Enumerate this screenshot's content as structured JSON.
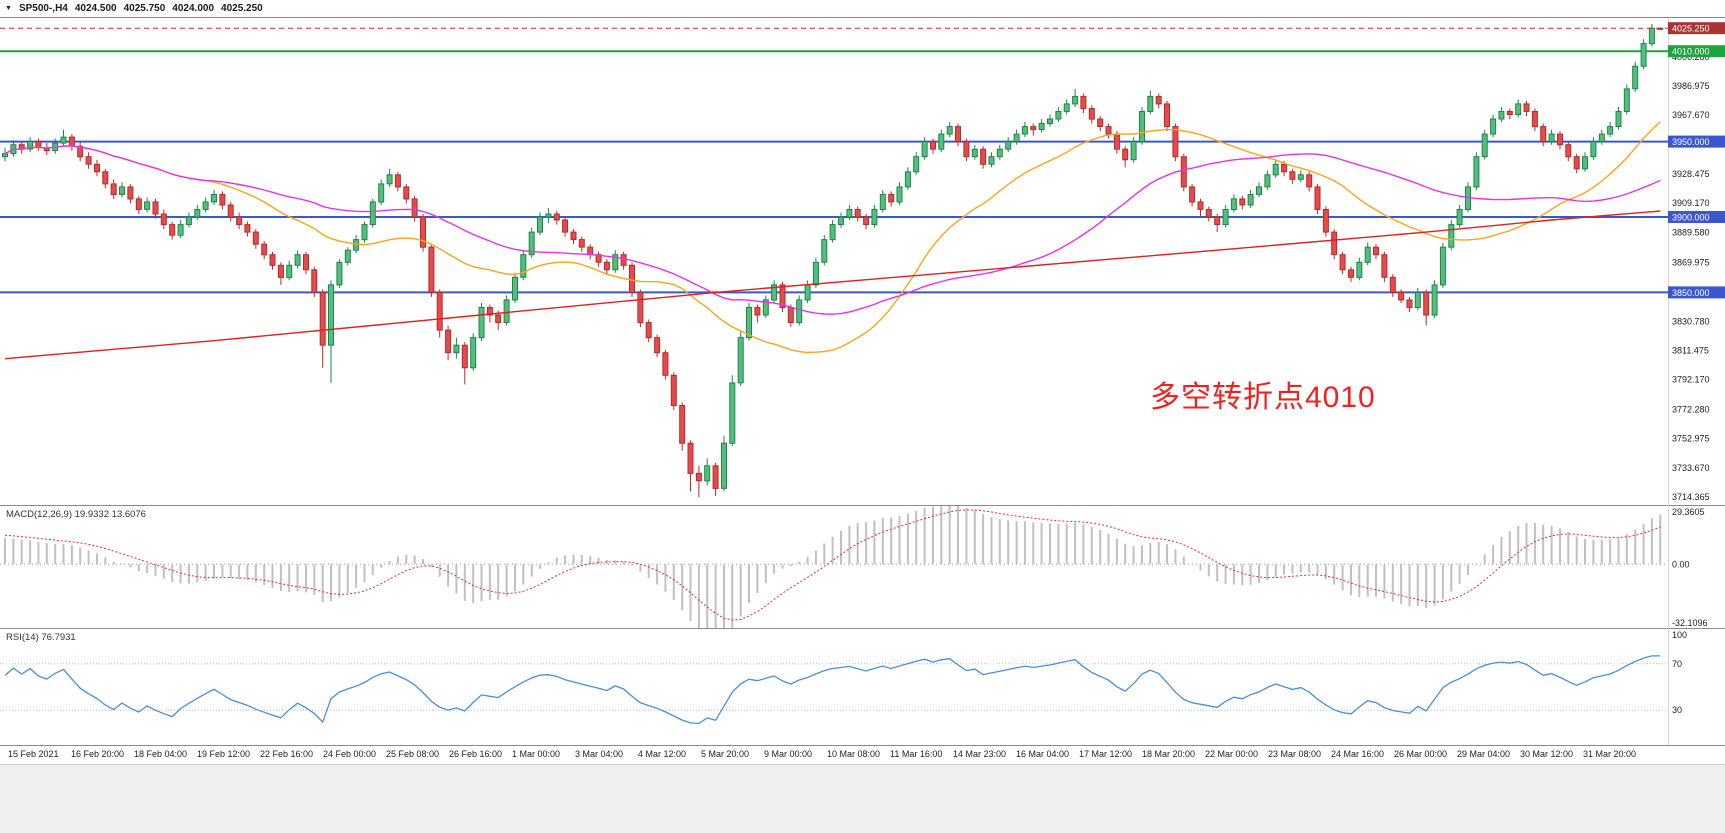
{
  "quote_bar": {
    "symbol_period": "SP500-,H4",
    "open": "4024.500",
    "high": "4025.750",
    "low": "4024.000",
    "close": "4025.250"
  },
  "annotation": {
    "text": "多空转折点4010",
    "color": "#f41f1f"
  },
  "panes": {
    "macd": {
      "header": "MACD(12,26,9) 19.9332 13.6076",
      "scale_labels": {
        "top": "29.3605",
        "zero": "0.00",
        "bottom": "-32.1096"
      }
    },
    "rsi": {
      "header": "RSI(14) 76.7931",
      "scale_labels": [
        {
          "label": "100",
          "value": 100
        },
        {
          "label": "70",
          "value": 70
        },
        {
          "label": "30",
          "value": 30
        }
      ]
    }
  },
  "price_axis": {
    "current": {
      "label": "4025.250",
      "value": 4025.25
    },
    "line_badges": [
      {
        "label": "4010.000",
        "value": 4010,
        "color": "#1FA33C"
      },
      {
        "label": "3950.000",
        "value": 3950,
        "color": "#3A57D0"
      },
      {
        "label": "3900.000",
        "value": 3900,
        "color": "#3A57D0"
      },
      {
        "label": "3850.000",
        "value": 3850,
        "color": "#3A57D0"
      }
    ],
    "ticks": [
      {
        "label": "4006.280",
        "value": 4006.28
      },
      {
        "label": "3986.975",
        "value": 3986.975
      },
      {
        "label": "3967.670",
        "value": 3967.67
      },
      {
        "label": "3928.475",
        "value": 3928.475
      },
      {
        "label": "3909.170",
        "value": 3909.17
      },
      {
        "label": "3889.580",
        "value": 3889.58
      },
      {
        "label": "3869.975",
        "value": 3869.975
      },
      {
        "label": "3830.780",
        "value": 3830.78
      },
      {
        "label": "3811.475",
        "value": 3811.475
      },
      {
        "label": "3792.170",
        "value": 3792.17
      },
      {
        "label": "3772.280",
        "value": 3772.28
      },
      {
        "label": "3752.975",
        "value": 3752.975
      },
      {
        "label": "3733.670",
        "value": 3733.67
      },
      {
        "label": "3714.365",
        "value": 3714.365
      }
    ]
  },
  "time_axis": {
    "labels": [
      "15 Feb 2021",
      "16 Feb 20:00",
      "18 Feb 04:00",
      "19 Feb 12:00",
      "22 Feb 16:00",
      "24 Feb 00:00",
      "25 Feb 08:00",
      "26 Feb 16:00",
      "1 Mar 00:00",
      "3 Mar 04:00",
      "4 Mar 12:00",
      "5 Mar 20:00",
      "9 Mar 00:00",
      "10 Mar 08:00",
      "11 Mar 16:00",
      "14 Mar 23:00",
      "16 Mar 04:00",
      "17 Mar 12:00",
      "18 Mar 20:00",
      "22 Mar 00:00",
      "23 Mar 08:00",
      "24 Mar 16:00",
      "26 Mar 00:00",
      "29 Mar 04:00",
      "30 Mar 12:00",
      "31 Mar 20:00"
    ]
  },
  "colors": {
    "up_fill": "#52c07c",
    "up_border": "#1e8449",
    "down_fill": "#e64b4b",
    "down_border": "#b52b2b",
    "current_line": "#E02020",
    "macd_hist": "#c0c0c0",
    "macd_signal": "#E03030",
    "rsi": "#4a90d2",
    "badge_current": "#A93434",
    "axis_text": "#222222"
  },
  "chart_data": {
    "type": "candlestick",
    "symbol": "SP500-",
    "timeframe": "H4",
    "price_range": [
      3709,
      4032
    ],
    "candles": [
      [
        3940,
        3946,
        3937,
        3942
      ],
      [
        3942,
        3951,
        3940,
        3948
      ],
      [
        3948,
        3950,
        3942,
        3945
      ],
      [
        3945,
        3953,
        3943,
        3950
      ],
      [
        3950,
        3952,
        3944,
        3946
      ],
      [
        3946,
        3949,
        3941,
        3944
      ],
      [
        3944,
        3952,
        3942,
        3949
      ],
      [
        3949,
        3958,
        3947,
        3953
      ],
      [
        3953,
        3955,
        3944,
        3947
      ],
      [
        3947,
        3950,
        3937,
        3940
      ],
      [
        3940,
        3943,
        3932,
        3935
      ],
      [
        3935,
        3938,
        3927,
        3930
      ],
      [
        3930,
        3932,
        3919,
        3922
      ],
      [
        3922,
        3925,
        3912,
        3915
      ],
      [
        3915,
        3923,
        3913,
        3920
      ],
      [
        3920,
        3922,
        3909,
        3912
      ],
      [
        3912,
        3914,
        3902,
        3905
      ],
      [
        3905,
        3913,
        3903,
        3910
      ],
      [
        3910,
        3912,
        3899,
        3902
      ],
      [
        3902,
        3905,
        3892,
        3895
      ],
      [
        3895,
        3897,
        3885,
        3888
      ],
      [
        3888,
        3898,
        3886,
        3895
      ],
      [
        3895,
        3903,
        3893,
        3900
      ],
      [
        3900,
        3908,
        3898,
        3905
      ],
      [
        3905,
        3913,
        3903,
        3910
      ],
      [
        3910,
        3918,
        3908,
        3915
      ],
      [
        3915,
        3917,
        3905,
        3908
      ],
      [
        3908,
        3910,
        3897,
        3900
      ],
      [
        3900,
        3903,
        3892,
        3895
      ],
      [
        3895,
        3897,
        3887,
        3890
      ],
      [
        3890,
        3892,
        3879,
        3882
      ],
      [
        3882,
        3884,
        3872,
        3875
      ],
      [
        3875,
        3877,
        3865,
        3868
      ],
      [
        3868,
        3870,
        3855,
        3860
      ],
      [
        3860,
        3871,
        3858,
        3868
      ],
      [
        3868,
        3878,
        3866,
        3875
      ],
      [
        3875,
        3877,
        3862,
        3865
      ],
      [
        3865,
        3867,
        3847,
        3850
      ],
      [
        3850,
        3852,
        3800,
        3815
      ],
      [
        3815,
        3858,
        3790,
        3855
      ],
      [
        3855,
        3872,
        3853,
        3870
      ],
      [
        3870,
        3880,
        3868,
        3878
      ],
      [
        3878,
        3888,
        3876,
        3885
      ],
      [
        3885,
        3897,
        3883,
        3895
      ],
      [
        3895,
        3912,
        3893,
        3910
      ],
      [
        3910,
        3925,
        3908,
        3922
      ],
      [
        3922,
        3932,
        3920,
        3928
      ],
      [
        3928,
        3930,
        3917,
        3920
      ],
      [
        3920,
        3922,
        3909,
        3912
      ],
      [
        3912,
        3914,
        3897,
        3900
      ],
      [
        3900,
        3902,
        3877,
        3880
      ],
      [
        3880,
        3882,
        3847,
        3850
      ],
      [
        3850,
        3852,
        3820,
        3825
      ],
      [
        3825,
        3828,
        3805,
        3810
      ],
      [
        3810,
        3820,
        3806,
        3815
      ],
      [
        3815,
        3817,
        3789,
        3800
      ],
      [
        3800,
        3823,
        3798,
        3820
      ],
      [
        3820,
        3843,
        3818,
        3840
      ],
      [
        3840,
        3842,
        3830,
        3835
      ],
      [
        3835,
        3838,
        3825,
        3830
      ],
      [
        3830,
        3848,
        3828,
        3845
      ],
      [
        3845,
        3863,
        3843,
        3860
      ],
      [
        3860,
        3878,
        3858,
        3875
      ],
      [
        3875,
        3893,
        3873,
        3890
      ],
      [
        3890,
        3903,
        3888,
        3900
      ],
      [
        3900,
        3906,
        3896,
        3902
      ],
      [
        3902,
        3904,
        3895,
        3898
      ],
      [
        3898,
        3900,
        3887,
        3890
      ],
      [
        3890,
        3892,
        3882,
        3885
      ],
      [
        3885,
        3887,
        3877,
        3880
      ],
      [
        3880,
        3882,
        3872,
        3875
      ],
      [
        3875,
        3877,
        3867,
        3870
      ],
      [
        3870,
        3872,
        3862,
        3865
      ],
      [
        3865,
        3878,
        3863,
        3875
      ],
      [
        3875,
        3877,
        3865,
        3868
      ],
      [
        3868,
        3870,
        3847,
        3850
      ],
      [
        3850,
        3852,
        3827,
        3830
      ],
      [
        3830,
        3832,
        3817,
        3820
      ],
      [
        3820,
        3822,
        3807,
        3810
      ],
      [
        3810,
        3812,
        3792,
        3795
      ],
      [
        3795,
        3797,
        3772,
        3775
      ],
      [
        3775,
        3777,
        3745,
        3750
      ],
      [
        3750,
        3752,
        3718,
        3730
      ],
      [
        3730,
        3735,
        3714,
        3725
      ],
      [
        3725,
        3740,
        3722,
        3735
      ],
      [
        3735,
        3737,
        3715,
        3720
      ],
      [
        3720,
        3755,
        3718,
        3750
      ],
      [
        3750,
        3795,
        3748,
        3790
      ],
      [
        3790,
        3825,
        3788,
        3820
      ],
      [
        3820,
        3843,
        3818,
        3840
      ],
      [
        3840,
        3842,
        3830,
        3835
      ],
      [
        3835,
        3848,
        3833,
        3845
      ],
      [
        3845,
        3858,
        3843,
        3855
      ],
      [
        3855,
        3857,
        3837,
        3840
      ],
      [
        3840,
        3842,
        3827,
        3830
      ],
      [
        3830,
        3848,
        3828,
        3845
      ],
      [
        3845,
        3858,
        3843,
        3855
      ],
      [
        3855,
        3873,
        3853,
        3870
      ],
      [
        3870,
        3888,
        3868,
        3885
      ],
      [
        3885,
        3898,
        3883,
        3895
      ],
      [
        3895,
        3903,
        3893,
        3900
      ],
      [
        3900,
        3908,
        3898,
        3905
      ],
      [
        3905,
        3907,
        3897,
        3900
      ],
      [
        3900,
        3902,
        3892,
        3895
      ],
      [
        3895,
        3908,
        3893,
        3905
      ],
      [
        3905,
        3918,
        3903,
        3915
      ],
      [
        3915,
        3917,
        3907,
        3910
      ],
      [
        3910,
        3923,
        3908,
        3920
      ],
      [
        3920,
        3933,
        3918,
        3930
      ],
      [
        3930,
        3943,
        3928,
        3940
      ],
      [
        3940,
        3953,
        3938,
        3950
      ],
      [
        3950,
        3952,
        3942,
        3945
      ],
      [
        3945,
        3958,
        3943,
        3955
      ],
      [
        3955,
        3963,
        3953,
        3960
      ],
      [
        3960,
        3962,
        3947,
        3950
      ],
      [
        3950,
        3952,
        3937,
        3940
      ],
      [
        3940,
        3948,
        3938,
        3945
      ],
      [
        3945,
        3947,
        3932,
        3935
      ],
      [
        3935,
        3943,
        3933,
        3940
      ],
      [
        3940,
        3948,
        3938,
        3945
      ],
      [
        3945,
        3953,
        3943,
        3950
      ],
      [
        3950,
        3958,
        3948,
        3955
      ],
      [
        3955,
        3963,
        3953,
        3960
      ],
      [
        3960,
        3962,
        3954,
        3958
      ],
      [
        3958,
        3965,
        3956,
        3962
      ],
      [
        3962,
        3968,
        3960,
        3965
      ],
      [
        3965,
        3973,
        3963,
        3970
      ],
      [
        3970,
        3978,
        3968,
        3975
      ],
      [
        3975,
        3985,
        3973,
        3980
      ],
      [
        3980,
        3982,
        3969,
        3972
      ],
      [
        3972,
        3974,
        3962,
        3965
      ],
      [
        3965,
        3967,
        3957,
        3960
      ],
      [
        3960,
        3962,
        3952,
        3955
      ],
      [
        3955,
        3957,
        3942,
        3945
      ],
      [
        3945,
        3947,
        3933,
        3938
      ],
      [
        3938,
        3953,
        3936,
        3950
      ],
      [
        3950,
        3973,
        3948,
        3970
      ],
      [
        3970,
        3984,
        3968,
        3980
      ],
      [
        3980,
        3982,
        3972,
        3975
      ],
      [
        3975,
        3977,
        3957,
        3960
      ],
      [
        3960,
        3962,
        3937,
        3940
      ],
      [
        3940,
        3942,
        3917,
        3920
      ],
      [
        3920,
        3922,
        3907,
        3910
      ],
      [
        3910,
        3912,
        3900,
        3905
      ],
      [
        3905,
        3907,
        3897,
        3900
      ],
      [
        3900,
        3902,
        3890,
        3895
      ],
      [
        3895,
        3908,
        3893,
        3905
      ],
      [
        3905,
        3915,
        3903,
        3912
      ],
      [
        3912,
        3914,
        3905,
        3908
      ],
      [
        3908,
        3918,
        3906,
        3915
      ],
      [
        3915,
        3923,
        3913,
        3920
      ],
      [
        3920,
        3931,
        3918,
        3928
      ],
      [
        3928,
        3938,
        3926,
        3935
      ],
      [
        3935,
        3937,
        3927,
        3930
      ],
      [
        3930,
        3932,
        3922,
        3925
      ],
      [
        3925,
        3931,
        3923,
        3928
      ],
      [
        3928,
        3930,
        3917,
        3920
      ],
      [
        3920,
        3922,
        3902,
        3905
      ],
      [
        3905,
        3907,
        3887,
        3890
      ],
      [
        3890,
        3892,
        3872,
        3875
      ],
      [
        3875,
        3877,
        3862,
        3865
      ],
      [
        3865,
        3867,
        3857,
        3860
      ],
      [
        3860,
        3873,
        3858,
        3870
      ],
      [
        3870,
        3883,
        3868,
        3880
      ],
      [
        3880,
        3882,
        3872,
        3875
      ],
      [
        3875,
        3877,
        3857,
        3860
      ],
      [
        3860,
        3862,
        3847,
        3850
      ],
      [
        3850,
        3852,
        3843,
        3845
      ],
      [
        3845,
        3847,
        3837,
        3840
      ],
      [
        3840,
        3853,
        3838,
        3850
      ],
      [
        3850,
        3852,
        3828,
        3835
      ],
      [
        3835,
        3858,
        3833,
        3855
      ],
      [
        3855,
        3883,
        3853,
        3880
      ],
      [
        3880,
        3898,
        3878,
        3895
      ],
      [
        3895,
        3908,
        3893,
        3905
      ],
      [
        3905,
        3923,
        3903,
        3920
      ],
      [
        3920,
        3943,
        3918,
        3940
      ],
      [
        3940,
        3958,
        3938,
        3955
      ],
      [
        3955,
        3968,
        3953,
        3965
      ],
      [
        3965,
        3973,
        3963,
        3970
      ],
      [
        3970,
        3972,
        3965,
        3968
      ],
      [
        3968,
        3978,
        3966,
        3975
      ],
      [
        3975,
        3977,
        3967,
        3970
      ],
      [
        3970,
        3972,
        3957,
        3960
      ],
      [
        3960,
        3962,
        3947,
        3950
      ],
      [
        3950,
        3958,
        3948,
        3955
      ],
      [
        3955,
        3957,
        3945,
        3948
      ],
      [
        3948,
        3950,
        3937,
        3940
      ],
      [
        3940,
        3942,
        3929,
        3932
      ],
      [
        3932,
        3943,
        3930,
        3940
      ],
      [
        3940,
        3953,
        3938,
        3950
      ],
      [
        3950,
        3958,
        3948,
        3955
      ],
      [
        3955,
        3963,
        3953,
        3960
      ],
      [
        3960,
        3973,
        3958,
        3970
      ],
      [
        3970,
        3988,
        3968,
        3985
      ],
      [
        3985,
        4003,
        3983,
        4000
      ],
      [
        4000,
        4018,
        3998,
        4015
      ],
      [
        4015,
        4028,
        4013,
        4025.25
      ],
      [
        4024.5,
        4025.75,
        4024,
        4025.25
      ]
    ],
    "moving_averages": [
      {
        "name": "ma-fast-orange",
        "type": "sma",
        "period": 25,
        "color": "#F9A51A"
      },
      {
        "name": "ma-mid-magenta",
        "type": "sma",
        "period": 50,
        "color": "#E832E8"
      },
      {
        "name": "ma-slow-red",
        "type": "anchors",
        "color": "#E02020",
        "anchors": [
          [
            0,
            3806
          ],
          [
            25,
            3818
          ],
          [
            55,
            3834
          ],
          [
            85,
            3850
          ],
          [
            115,
            3864
          ],
          [
            145,
            3878
          ],
          [
            170,
            3890
          ],
          [
            185,
            3898
          ],
          [
            198,
            3904
          ]
        ]
      }
    ],
    "horizontal_lines": [
      {
        "value": 4010,
        "color": "#1FA33C",
        "width": 2
      },
      {
        "value": 3950,
        "color": "#3A57D0",
        "width": 2
      },
      {
        "value": 3900,
        "color": "#3A57D0",
        "width": 2
      },
      {
        "value": 3850,
        "color": "#3A57D0",
        "width": 2
      }
    ],
    "current_price": 4025.25,
    "indicators": {
      "macd": {
        "label": "MACD(12,26,9)",
        "fast": 12,
        "slow": 26,
        "signal": 9,
        "value_main": "19.9332",
        "value_signal": "13.6076",
        "scale_max": 29.3605,
        "scale_min": -32.1096
      },
      "rsi": {
        "label": "RSI(14)",
        "period": 14,
        "value": "76.7931",
        "levels": [
          30,
          70
        ],
        "scale": [
          0,
          100
        ]
      }
    }
  }
}
